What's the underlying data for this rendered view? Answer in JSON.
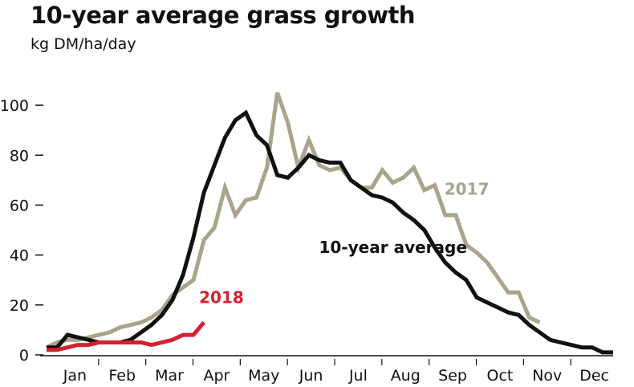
{
  "chart_data": {
    "type": "line",
    "title": "10-year average grass growth",
    "subtitle": "kg DM/ha/day",
    "xlabel": "",
    "ylabel": "",
    "ylim": [
      0,
      110
    ],
    "yticks": [
      0,
      20,
      40,
      60,
      80,
      100
    ],
    "months": [
      "Jan",
      "Feb",
      "Mar",
      "Apr",
      "May",
      "Jun",
      "Jul",
      "Aug",
      "Sep",
      "Oct",
      "Nov",
      "Dec"
    ],
    "x_unit": "week",
    "grid": false,
    "series": [
      {
        "name": "10-year average",
        "color": "#111111",
        "label_position": "below-right",
        "points": [
          [
            1,
            3
          ],
          [
            2,
            3
          ],
          [
            3,
            8
          ],
          [
            4,
            7
          ],
          [
            5,
            6
          ],
          [
            6,
            5
          ],
          [
            7,
            5
          ],
          [
            8,
            5
          ],
          [
            9,
            6
          ],
          [
            10,
            9
          ],
          [
            11,
            12
          ],
          [
            12,
            16
          ],
          [
            13,
            22
          ],
          [
            14,
            32
          ],
          [
            15,
            47
          ],
          [
            16,
            65
          ],
          [
            17,
            76
          ],
          [
            18,
            87
          ],
          [
            19,
            94
          ],
          [
            20,
            97
          ],
          [
            21,
            88
          ],
          [
            22,
            84
          ],
          [
            23,
            72
          ],
          [
            24,
            71
          ],
          [
            25,
            75
          ],
          [
            26,
            80
          ],
          [
            27,
            78
          ],
          [
            28,
            77
          ],
          [
            29,
            77
          ],
          [
            30,
            70
          ],
          [
            31,
            67
          ],
          [
            32,
            64
          ],
          [
            33,
            63
          ],
          [
            34,
            61
          ],
          [
            35,
            57
          ],
          [
            36,
            54
          ],
          [
            37,
            50
          ],
          [
            38,
            43
          ],
          [
            39,
            37
          ],
          [
            40,
            33
          ],
          [
            41,
            30
          ],
          [
            42,
            23
          ],
          [
            43,
            21
          ],
          [
            44,
            19
          ],
          [
            45,
            17
          ],
          [
            46,
            16
          ],
          [
            47,
            12
          ],
          [
            48,
            9
          ],
          [
            49,
            6
          ],
          [
            50,
            5
          ],
          [
            51,
            4
          ],
          [
            52,
            3
          ],
          [
            53,
            3
          ],
          [
            54,
            1
          ],
          [
            55,
            1
          ]
        ]
      },
      {
        "name": "2017",
        "color": "#a9a48b",
        "label_position": "right",
        "points": [
          [
            1,
            3
          ],
          [
            2,
            5
          ],
          [
            3,
            6
          ],
          [
            4,
            6
          ],
          [
            5,
            7
          ],
          [
            6,
            8
          ],
          [
            7,
            9
          ],
          [
            8,
            11
          ],
          [
            9,
            12
          ],
          [
            10,
            13
          ],
          [
            11,
            15
          ],
          [
            12,
            18
          ],
          [
            13,
            24
          ],
          [
            14,
            27
          ],
          [
            15,
            30
          ],
          [
            16,
            46
          ],
          [
            17,
            51
          ],
          [
            18,
            67
          ],
          [
            19,
            56
          ],
          [
            20,
            62
          ],
          [
            21,
            63
          ],
          [
            22,
            75
          ],
          [
            23,
            105
          ],
          [
            24,
            93
          ],
          [
            25,
            75
          ],
          [
            26,
            86
          ],
          [
            27,
            76
          ],
          [
            28,
            74
          ],
          [
            29,
            75
          ],
          [
            30,
            70
          ],
          [
            31,
            67
          ],
          [
            32,
            67
          ],
          [
            33,
            74
          ],
          [
            34,
            69
          ],
          [
            35,
            71
          ],
          [
            36,
            75
          ],
          [
            37,
            66
          ],
          [
            38,
            68
          ],
          [
            39,
            56
          ],
          [
            40,
            56
          ],
          [
            41,
            44
          ],
          [
            42,
            41
          ],
          [
            43,
            37
          ],
          [
            44,
            31
          ],
          [
            45,
            25
          ],
          [
            46,
            25
          ],
          [
            47,
            15
          ],
          [
            48,
            13
          ]
        ]
      },
      {
        "name": "2018",
        "color": "#d6202f",
        "label_position": "above",
        "points": [
          [
            1,
            2
          ],
          [
            2,
            2
          ],
          [
            3,
            3
          ],
          [
            4,
            4
          ],
          [
            5,
            4
          ],
          [
            6,
            5
          ],
          [
            7,
            5
          ],
          [
            8,
            5
          ],
          [
            9,
            5
          ],
          [
            10,
            5
          ],
          [
            11,
            4
          ],
          [
            12,
            5
          ],
          [
            13,
            6
          ],
          [
            14,
            8
          ],
          [
            15,
            8
          ],
          [
            16,
            13
          ]
        ]
      }
    ]
  }
}
